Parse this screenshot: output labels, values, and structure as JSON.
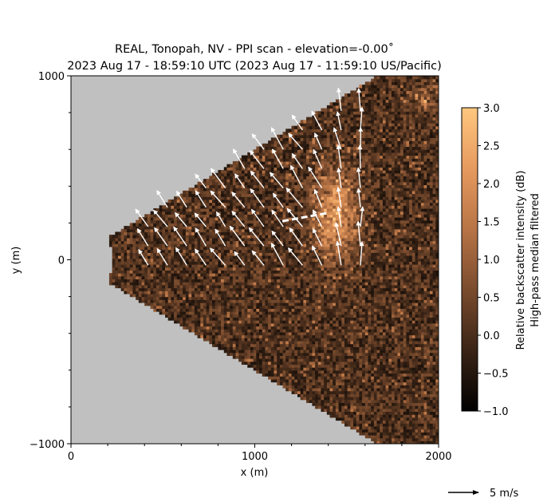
{
  "chart_data": {
    "type": "heatmap",
    "title_line1": "REAL, Tonopah, NV - PPI scan - elevation=-0.00˚",
    "title_line2": "2023 Aug 17 - 18:59:10 UTC (2023 Aug 17 - 11:59:10 US/Pacific)",
    "xlabel": "x (m)",
    "ylabel": "y (m)",
    "xlim": [
      0,
      2000
    ],
    "ylim": [
      -1000,
      1000
    ],
    "x_ticks": [
      "0",
      "1000",
      "2000"
    ],
    "y_ticks": [
      "1000",
      "0",
      "−1000"
    ],
    "colorbar": {
      "label_line1": "Relative backscatter intensity (dB)",
      "label_line2": "High-pass median filtered",
      "range": [
        -1.0,
        3.0
      ],
      "ticks": [
        "3.0",
        "2.5",
        "2.0",
        "1.5",
        "1.0",
        "0.5",
        "0.0",
        "−0.5",
        "−1.0"
      ],
      "colors": [
        "#000000",
        "#3a2416",
        "#7a4c2e",
        "#b87446",
        "#f2a566",
        "#ffc77f"
      ]
    },
    "scan": {
      "origin": [
        0,
        0
      ],
      "range_min": 230,
      "range_max_x": 2000,
      "half_angle_deg": 31,
      "background": "#c0c0c0"
    },
    "plume": {
      "description_values": "high backscatter region",
      "center": [
        1440,
        250
      ],
      "peak_db": 2.6
    },
    "wind_vectors": {
      "color": "#ffffff",
      "reference_label": "5 m/s",
      "reference_speed_ms": 5,
      "grid_spacing_m": 105,
      "mean_direction_deg_from_north": 325,
      "typical_speed_ms": 3.5
    },
    "highlight_segment": {
      "from": [
        1150,
        210
      ],
      "to": [
        1400,
        255
      ],
      "style": "white dashed"
    }
  }
}
